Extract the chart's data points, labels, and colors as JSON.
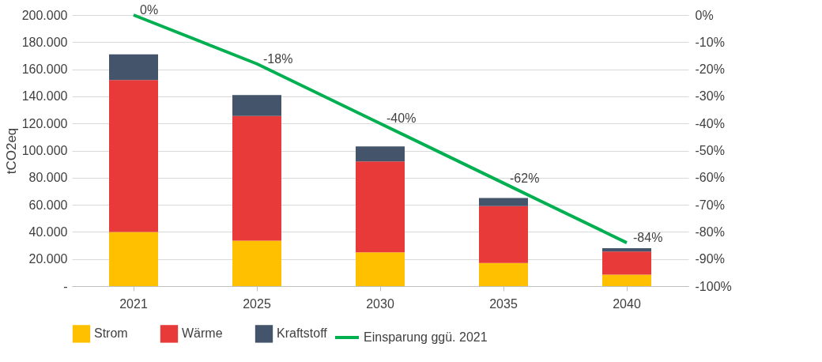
{
  "chart_data": {
    "type": "bar",
    "stacked": true,
    "ylabel": "tCO2eq",
    "categories": [
      "2021",
      "2025",
      "2030",
      "2035",
      "2040"
    ],
    "series": [
      {
        "name": "Strom",
        "color": "#ffc000",
        "values": [
          40000,
          33500,
          25000,
          17000,
          8500
        ]
      },
      {
        "name": "Wärme",
        "color": "#e83a38",
        "values": [
          112000,
          92000,
          67000,
          42000,
          17000
        ]
      },
      {
        "name": "Kraftstoff",
        "color": "#44546a",
        "values": [
          19000,
          15500,
          11000,
          6000,
          2500
        ]
      },
      {
        "name": "Einsparung ggü. 2021",
        "type": "line",
        "axis": "y2",
        "color": "#00b050",
        "values": [
          0,
          -18,
          -40,
          -62,
          -84
        ],
        "value_labels": [
          "0%",
          "-18%",
          "-40%",
          "-62%",
          "-84%"
        ]
      }
    ],
    "ylim": [
      0,
      200000
    ],
    "yticks": [
      {
        "value": 0,
        "label": "-"
      },
      {
        "value": 20000,
        "label": "20.000"
      },
      {
        "value": 40000,
        "label": "40.000"
      },
      {
        "value": 60000,
        "label": "60.000"
      },
      {
        "value": 80000,
        "label": "80.000"
      },
      {
        "value": 100000,
        "label": "100.000"
      },
      {
        "value": 120000,
        "label": "120.000"
      },
      {
        "value": 140000,
        "label": "140.000"
      },
      {
        "value": 160000,
        "label": "160.000"
      },
      {
        "value": 180000,
        "label": "180.000"
      },
      {
        "value": 200000,
        "label": "200.000"
      }
    ],
    "y2lim": [
      -100,
      0
    ],
    "y2ticks": [
      {
        "value": 0,
        "label": "0%"
      },
      {
        "value": -10,
        "label": "-10%"
      },
      {
        "value": -20,
        "label": "-20%"
      },
      {
        "value": -30,
        "label": "-30%"
      },
      {
        "value": -40,
        "label": "-40%"
      },
      {
        "value": -50,
        "label": "-50%"
      },
      {
        "value": -60,
        "label": "-60%"
      },
      {
        "value": -70,
        "label": "-70%"
      },
      {
        "value": -80,
        "label": "-80%"
      },
      {
        "value": -90,
        "label": "-90%"
      },
      {
        "value": -100,
        "label": "-100%"
      }
    ],
    "grid": "y",
    "legend": "bottom"
  }
}
